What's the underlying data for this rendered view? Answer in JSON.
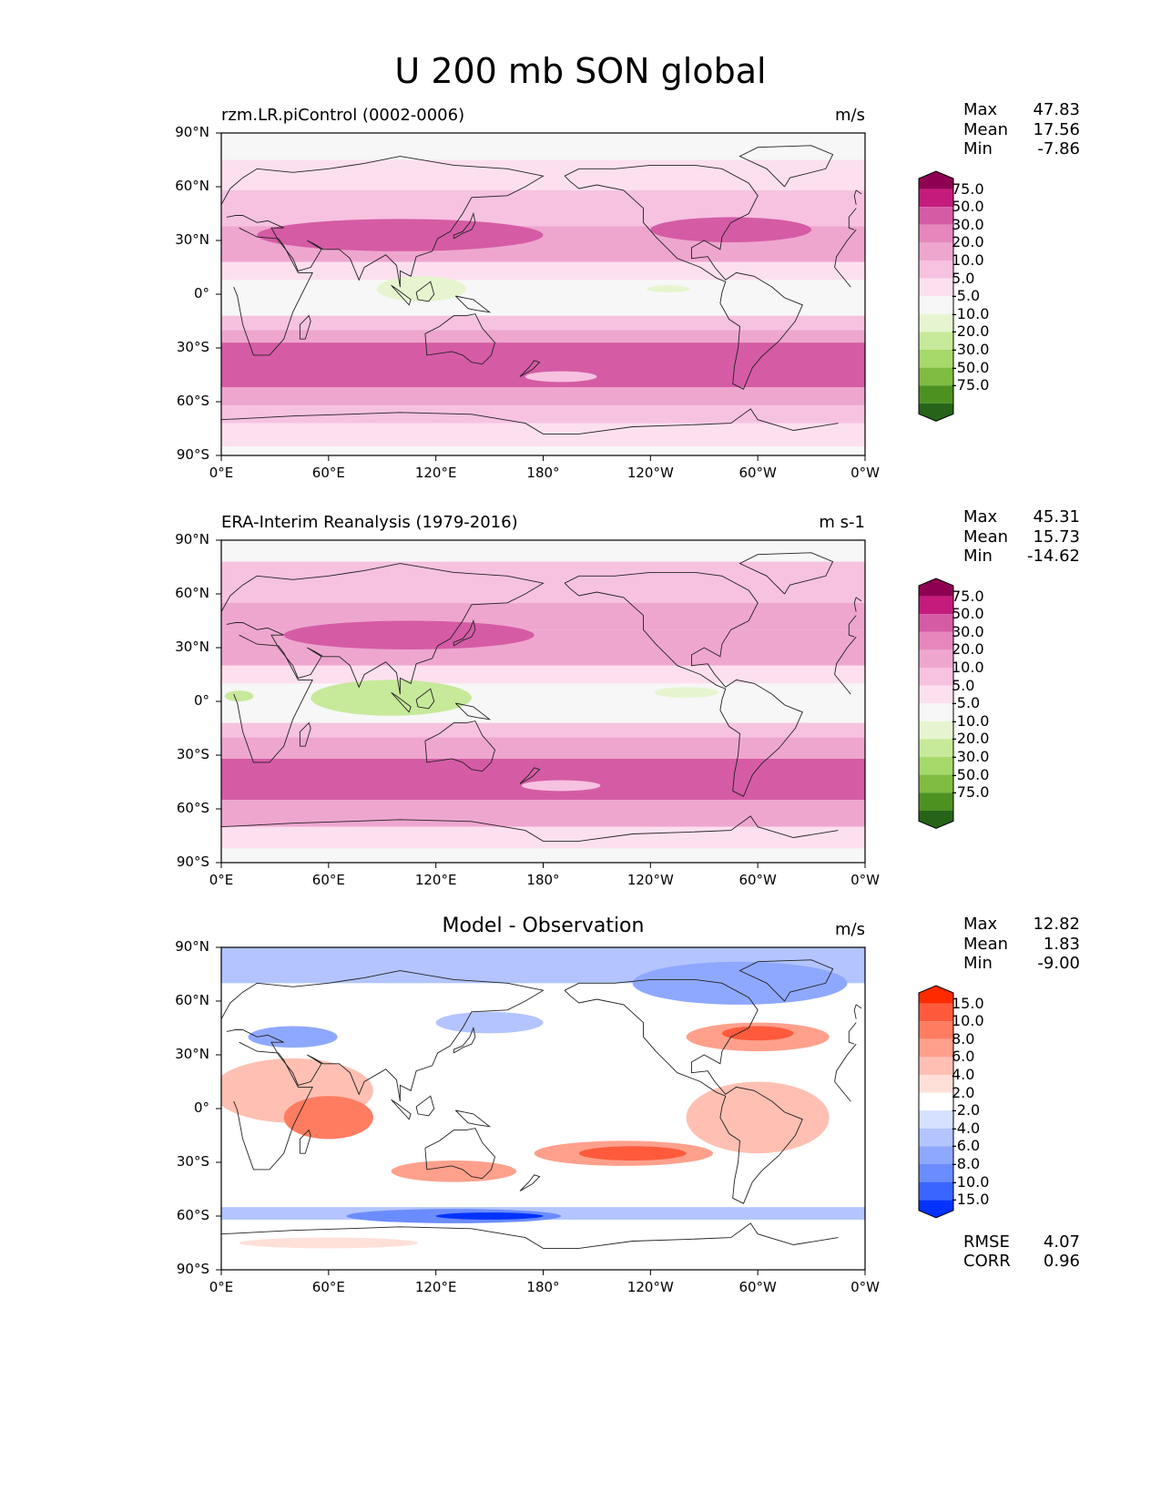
{
  "figure": {
    "title": "U 200 mb SON global"
  },
  "axes": {
    "x_ticks": [
      "0°E",
      "60°E",
      "120°E",
      "180°",
      "120°W",
      "60°W",
      "0°W"
    ],
    "y_ticks": [
      "90°N",
      "60°N",
      "30°N",
      "0°",
      "30°S",
      "60°S",
      "90°S"
    ]
  },
  "panels": [
    {
      "id": "model",
      "left_title": "rzm.LR.piControl (0002-0006)",
      "center_title": "",
      "units": "m/s",
      "stats": [
        {
          "label": "Max",
          "value": "47.83"
        },
        {
          "label": "Mean",
          "value": "17.56"
        },
        {
          "label": "Min",
          "value": "-7.86"
        }
      ],
      "colorbar": {
        "colors": [
          "#276419",
          "#4d9221",
          "#7fbc41",
          "#a6d96a",
          "#c7e99a",
          "#e6f5d0",
          "#f7f7f7",
          "#fde0ef",
          "#f6c2e0",
          "#eea6cf",
          "#e686bd",
          "#d55ba5",
          "#c51b7d",
          "#8e0152"
        ],
        "labels": [
          "75.0",
          "50.0",
          "30.0",
          "20.0",
          "10.0",
          "5.0",
          "-5.0",
          "-10.0",
          "-20.0",
          "-30.0",
          "-50.0",
          "-75.0"
        ]
      },
      "footer": []
    },
    {
      "id": "obs",
      "left_title": "ERA-Interim Reanalysis (1979-2016)",
      "center_title": "",
      "units": "m s-1",
      "stats": [
        {
          "label": "Max",
          "value": "45.31"
        },
        {
          "label": "Mean",
          "value": "15.73"
        },
        {
          "label": "Min",
          "value": "-14.62"
        }
      ],
      "colorbar": {
        "colors": [
          "#276419",
          "#4d9221",
          "#7fbc41",
          "#a6d96a",
          "#c7e99a",
          "#e6f5d0",
          "#f7f7f7",
          "#fde0ef",
          "#f6c2e0",
          "#eea6cf",
          "#e686bd",
          "#d55ba5",
          "#c51b7d",
          "#8e0152"
        ],
        "labels": [
          "75.0",
          "50.0",
          "30.0",
          "20.0",
          "10.0",
          "5.0",
          "-5.0",
          "-10.0",
          "-20.0",
          "-30.0",
          "-50.0",
          "-75.0"
        ]
      },
      "footer": []
    },
    {
      "id": "diff",
      "left_title": "",
      "center_title": "Model - Observation",
      "units": "m/s",
      "stats": [
        {
          "label": "Max",
          "value": "12.82"
        },
        {
          "label": "Mean",
          "value": "1.83"
        },
        {
          "label": "Min",
          "value": "-9.00"
        }
      ],
      "colorbar": {
        "colors": [
          "#0432ff",
          "#3a64ff",
          "#6b8cff",
          "#8fa8ff",
          "#b3c4ff",
          "#d6e0ff",
          "#ffffff",
          "#ffe0d9",
          "#ffc0b3",
          "#ffa08c",
          "#ff7c61",
          "#ff5a3c",
          "#ff2a00"
        ],
        "labels": [
          "15.0",
          "10.0",
          "8.0",
          "6.0",
          "4.0",
          "2.0",
          "-2.0",
          "-4.0",
          "-6.0",
          "-8.0",
          "-10.0",
          "-15.0"
        ]
      },
      "footer": [
        {
          "label": "RMSE",
          "value": "4.07"
        },
        {
          "label": "CORR",
          "value": "0.96"
        }
      ]
    }
  ]
}
